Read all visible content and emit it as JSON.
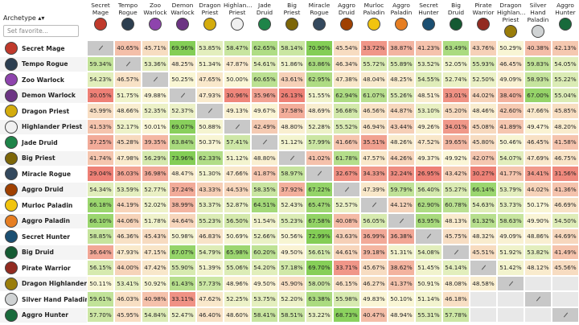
{
  "header": {
    "archetype": "Archetype ▴▾",
    "search_placeholder": "Set favorite...",
    "columns": [
      "Secret\nMage",
      "Tempo\nRogue",
      "Zoo\nWarlock",
      "Demon\nWarlock",
      "Dragon\nPriest",
      "Highlan…\nPriest",
      "Jade\nDruid",
      "Big Priest",
      "Miracle\nRogue",
      "Aggro\nDruid",
      "Murloc\nPaladin",
      "Aggro\nPaladin",
      "Secret\nHunter",
      "Big Druid",
      "Pirate\nWarrior",
      "Dragon\nHighlan…\nPriest",
      "Silver\nHand\nPaladin",
      "Aggro\nHunter"
    ]
  },
  "table": {
    "rows": [
      {
        "label": "Secret Mage",
        "cells": [
          null,
          "40.65%",
          "45.71%",
          "69.96%",
          "53.85%",
          "58.47%",
          "62.65%",
          "58.14%",
          "70.90%",
          "45.54%",
          "33.72%",
          "38.87%",
          "41.23%",
          "63.49%",
          "43.76%",
          "50.29%",
          "40.38%",
          "42.13%"
        ]
      },
      {
        "label": "Tempo Rogue",
        "cells": [
          "59.34%",
          null,
          "53.36%",
          "48.25%",
          "51.34%",
          "47.87%",
          "54.61%",
          "51.86%",
          "63.86%",
          "46.34%",
          "55.72%",
          "55.89%",
          "53.52%",
          "52.05%",
          "55.93%",
          "46.45%",
          "59.83%",
          "54.05%"
        ]
      },
      {
        "label": "Zoo Warlock",
        "cells": [
          "54.23%",
          "46.57%",
          null,
          "50.25%",
          "47.65%",
          "50.00%",
          "60.65%",
          "43.61%",
          "62.95%",
          "47.38%",
          "48.04%",
          "48.25%",
          "54.55%",
          "52.74%",
          "52.50%",
          "49.09%",
          "58.93%",
          "55.22%"
        ]
      },
      {
        "label": "Demon Warlock",
        "cells": [
          "30.05%",
          "51.75%",
          "49.88%",
          null,
          "47.93%",
          "30.96%",
          "35.96%",
          "26.13%",
          "51.55%",
          "62.94%",
          "61.07%",
          "55.26%",
          "48.51%",
          "33.01%",
          "44.02%",
          "38.40%",
          "67.00%",
          "55.04%"
        ]
      },
      {
        "label": "Dragon Priest",
        "cells": [
          "45.99%",
          "48.66%",
          "52.35%",
          "52.37%",
          null,
          "49.13%",
          "49.67%",
          "37.58%",
          "48.69%",
          "56.68%",
          "46.56%",
          "44.87%",
          "53.10%",
          "45.20%",
          "48.46%",
          "42.60%",
          "47.66%",
          "45.85%"
        ]
      },
      {
        "label": "Highlander Priest",
        "cells": [
          "41.53%",
          "52.17%",
          "50.01%",
          "69.07%",
          "50.88%",
          null,
          "42.49%",
          "48.80%",
          "52.28%",
          "55.52%",
          "46.94%",
          "43.44%",
          "49.26%",
          "34.01%",
          "45.08%",
          "41.89%",
          "49.47%",
          "48.20%"
        ]
      },
      {
        "label": "Jade Druid",
        "cells": [
          "37.25%",
          "45.28%",
          "39.35%",
          "63.84%",
          "50.37%",
          "57.41%",
          null,
          "51.12%",
          "57.99%",
          "41.66%",
          "35.51%",
          "48.26%",
          "47.52%",
          "39.65%",
          "45.80%",
          "50.46%",
          "46.45%",
          "41.58%"
        ]
      },
      {
        "label": "Big Priest",
        "cells": [
          "41.74%",
          "47.98%",
          "56.29%",
          "73.96%",
          "62.33%",
          "51.12%",
          "48.80%",
          null,
          "41.02%",
          "61.78%",
          "47.57%",
          "44.26%",
          "49.37%",
          "49.92%",
          "42.07%",
          "54.07%",
          "47.69%",
          "46.75%"
        ]
      },
      {
        "label": "Miracle Rogue",
        "cells": [
          "29.04%",
          "36.03%",
          "36.98%",
          "48.47%",
          "51.30%",
          "47.66%",
          "41.87%",
          "58.97%",
          null,
          "32.67%",
          "34.33%",
          "32.24%",
          "26.95%",
          "43.42%",
          "30.27%",
          "41.77%",
          "34.41%",
          "31.56%"
        ]
      },
      {
        "label": "Aggro Druid",
        "cells": [
          "54.34%",
          "53.59%",
          "52.77%",
          "37.24%",
          "43.33%",
          "44.53%",
          "58.35%",
          "37.92%",
          "67.22%",
          null,
          "47.39%",
          "59.79%",
          "56.40%",
          "55.27%",
          "66.14%",
          "53.79%",
          "44.02%",
          "41.36%"
        ]
      },
      {
        "label": "Murloc Paladin",
        "cells": [
          "66.18%",
          "44.19%",
          "52.02%",
          "38.99%",
          "53.37%",
          "52.87%",
          "64.51%",
          "52.43%",
          "65.47%",
          "52.57%",
          null,
          "44.12%",
          "62.90%",
          "60.78%",
          "54.63%",
          "53.73%",
          "50.17%",
          "46.69%"
        ]
      },
      {
        "label": "Aggro Paladin",
        "cells": [
          "66.10%",
          "44.06%",
          "51.78%",
          "44.64%",
          "55.23%",
          "56.50%",
          "51.54%",
          "55.23%",
          "67.58%",
          "40.08%",
          "56.05%",
          null,
          "63.95%",
          "48.13%",
          "61.32%",
          "58.63%",
          "49.90%",
          "54.50%"
        ]
      },
      {
        "label": "Secret Hunter",
        "cells": [
          "58.85%",
          "46.36%",
          "45.43%",
          "50.98%",
          "46.83%",
          "50.69%",
          "52.66%",
          "50.56%",
          "72.99%",
          "43.63%",
          "36.99%",
          "36.38%",
          null,
          "45.75%",
          "48.32%",
          "49.09%",
          "48.86%",
          "44.69%"
        ]
      },
      {
        "label": "Big Druid",
        "cells": [
          "36.64%",
          "47.93%",
          "47.15%",
          "67.07%",
          "54.79%",
          "65.98%",
          "60.20%",
          "49.50%",
          "56.61%",
          "44.61%",
          "39.18%",
          "51.31%",
          "54.08%",
          null,
          "45.51%",
          "51.92%",
          "53.82%",
          "41.49%"
        ]
      },
      {
        "label": "Pirate Warrior",
        "cells": [
          "56.15%",
          "44.00%",
          "47.42%",
          "55.90%",
          "51.39%",
          "55.06%",
          "54.20%",
          "57.18%",
          "69.70%",
          "33.71%",
          "45.67%",
          "38.62%",
          "51.45%",
          "54.14%",
          null,
          "51.42%",
          "48.12%",
          "45.56%"
        ]
      },
      {
        "label": "Dragon Highlander Priest",
        "cells": [
          "50.11%",
          "53.41%",
          "50.92%",
          "61.43%",
          "57.73%",
          "48.96%",
          "49.50%",
          "45.90%",
          "58.00%",
          "46.15%",
          "46.27%",
          "41.37%",
          "50.91%",
          "48.08%",
          "48.58%",
          null,
          null,
          null
        ]
      },
      {
        "label": "Silver Hand Paladin",
        "cells": [
          "59.61%",
          "46.03%",
          "40.98%",
          "33.11%",
          "47.62%",
          "52.25%",
          "53.75%",
          "52.20%",
          "63.38%",
          "55.98%",
          "49.83%",
          "50.10%",
          "51.14%",
          "46.18%",
          null,
          null,
          null,
          null
        ]
      },
      {
        "label": "Aggro Hunter",
        "cells": [
          "57.70%",
          "45.95%",
          "54.84%",
          "52.47%",
          "46.40%",
          "48.60%",
          "58.41%",
          "58.51%",
          "53.22%",
          "68.73%",
          "40.47%",
          "48.94%",
          "55.31%",
          "57.78%",
          null,
          null,
          null,
          null
        ]
      }
    ]
  }
}
